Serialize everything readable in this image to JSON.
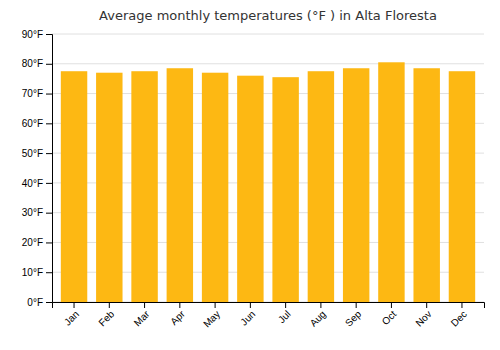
{
  "chart_data": {
    "type": "bar",
    "title": "Average monthly temperatures (°F ) in Alta Floresta",
    "categories": [
      "Jan",
      "Feb",
      "Mar",
      "Apr",
      "May",
      "Jun",
      "Jul",
      "Aug",
      "Sep",
      "Oct",
      "Nov",
      "Dec"
    ],
    "values": [
      77.5,
      77.0,
      77.5,
      78.5,
      77.0,
      76.0,
      75.5,
      77.5,
      78.5,
      80.5,
      78.5,
      77.5
    ],
    "color": "#FDB813",
    "ylim": [
      0,
      90
    ],
    "yticks": [
      {
        "value": 0,
        "label": "0°F"
      },
      {
        "value": 10,
        "label": "10°F"
      },
      {
        "value": 20,
        "label": "20°F"
      },
      {
        "value": 30,
        "label": "30°F"
      },
      {
        "value": 40,
        "label": "40°F"
      },
      {
        "value": 50,
        "label": "50°F"
      },
      {
        "value": 60,
        "label": "60°F"
      },
      {
        "value": 70,
        "label": "70°F"
      },
      {
        "value": 80,
        "label": "80°F"
      },
      {
        "value": 90,
        "label": "90°F"
      }
    ],
    "grid": true
  }
}
